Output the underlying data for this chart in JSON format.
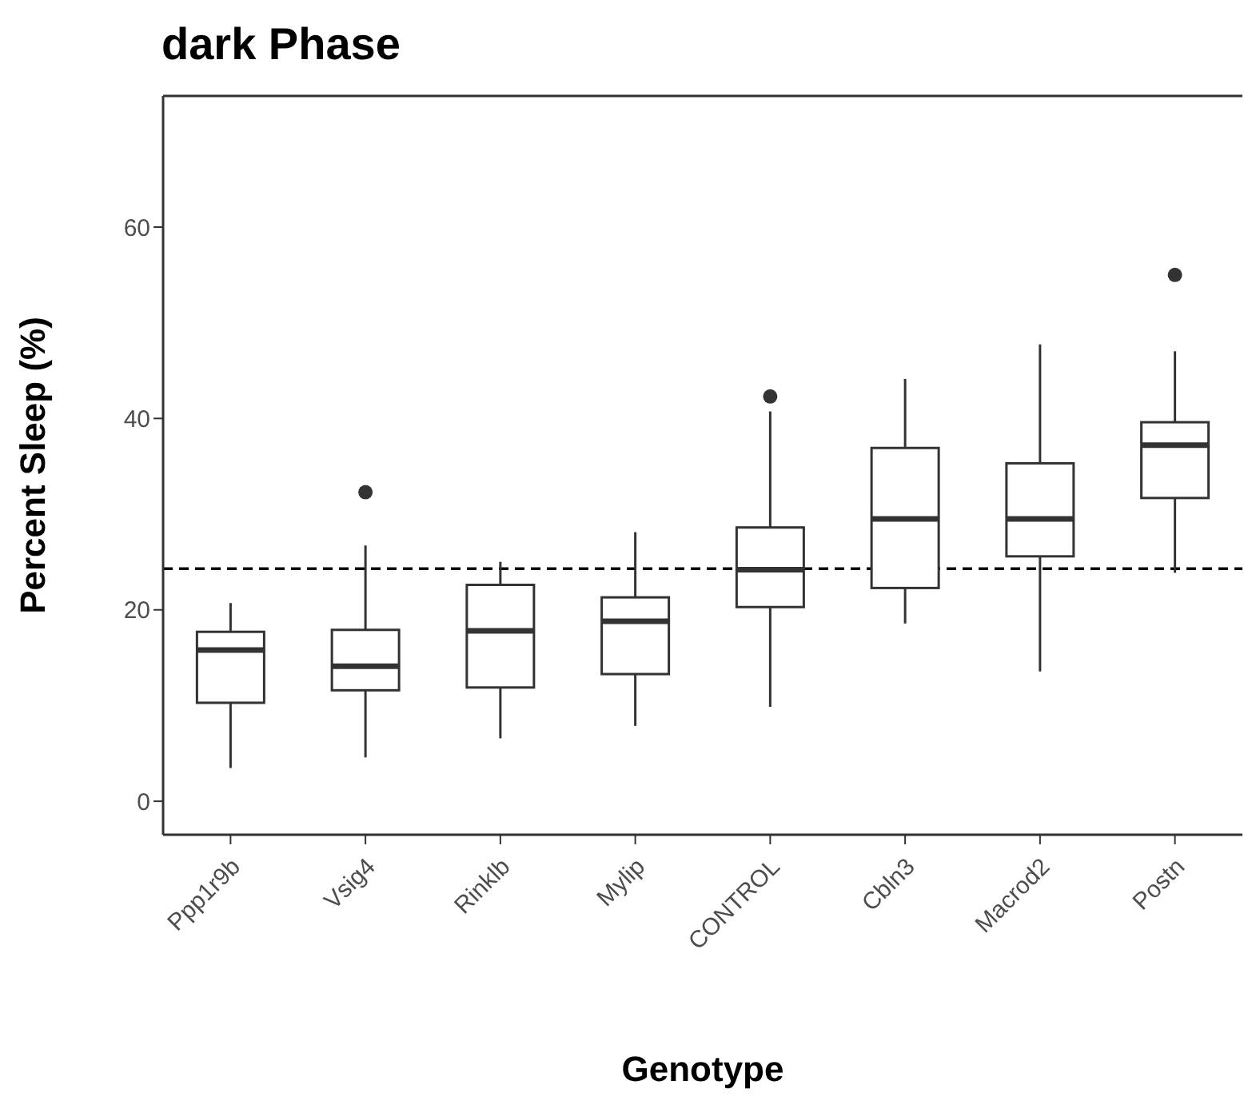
{
  "chart_data": {
    "type": "box",
    "title": "dark Phase",
    "xlabel": "Genotype",
    "ylabel": "Percent Sleep (%)",
    "categories": [
      "Ppp1r9b",
      "Vsig4",
      "Rinklb",
      "Mylip",
      "CONTROL",
      "Cbln3",
      "Macrod2",
      "Postn"
    ],
    "color": "#333333",
    "boxes": [
      {
        "low": 3.5,
        "q1": 10.3,
        "median": 15.8,
        "q3": 17.7,
        "high": 20.7
      },
      {
        "low": 4.6,
        "q1": 11.6,
        "median": 14.1,
        "q3": 17.9,
        "high": 26.7,
        "outliers": [
          32.3
        ]
      },
      {
        "low": 6.6,
        "q1": 11.9,
        "median": 17.8,
        "q3": 22.6,
        "high": 25
      },
      {
        "low": 7.9,
        "q1": 13.3,
        "median": 18.8,
        "q3": 21.3,
        "high": 28.1
      },
      {
        "low": 9.9,
        "q1": 20.3,
        "median": 24.2,
        "q3": 28.6,
        "high": 40.7,
        "outliers": [
          42.3
        ]
      },
      {
        "low": 18.6,
        "q1": 22.3,
        "median": 29.5,
        "q3": 36.9,
        "high": 44.1
      },
      {
        "low": 13.6,
        "q1": 25.6,
        "median": 29.5,
        "q3": 35.3,
        "high": 47.7
      },
      {
        "low": 23.9,
        "q1": 31.7,
        "median": 37.2,
        "q3": 39.6,
        "high": 47,
        "outliers": [
          55
        ]
      }
    ],
    "ylim": [
      -3.5,
      73.7
    ],
    "yticks": [
      0,
      20,
      40,
      60
    ],
    "grid": false,
    "ref_lines": [
      {
        "axis": "y",
        "value": 24.3,
        "line_style": "dashed",
        "color": "#000000"
      }
    ]
  }
}
